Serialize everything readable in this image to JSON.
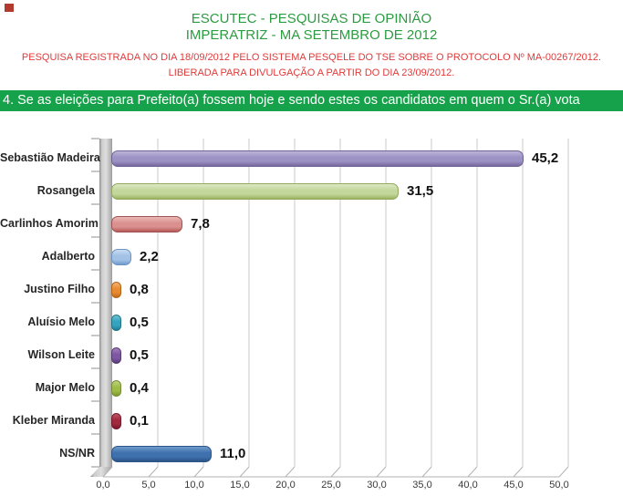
{
  "corner_mark": {
    "color": "#b2392e"
  },
  "header": {
    "title_line1": "ESCUTEC - PESQUISAS DE OPINIÃO",
    "title_line2": "IMPERATRIZ - MA SETEMBRO DE 2012",
    "title_color": "#2d9b41",
    "registration_line1": "PESQUISA REGISTRADA NO DIA 18/09/2012 PELO SISTEMA PESQELE DO TSE SOBRE O PROTOCOLO Nº MA-00267/2012.",
    "registration_line2": "LIBERADA PARA DIVULGAÇÃO A PARTIR DO DIA 23/09/2012.",
    "registration_color": "#e03a3a"
  },
  "question_banner": {
    "text": "4. Se as eleições para Prefeito(a) fossem hoje e sendo estes os candidatos em quem o Sr.(a) vota",
    "background": "#16a24b",
    "text_color": "#ffffff"
  },
  "chart_data": {
    "type": "bar",
    "orientation": "horizontal",
    "title": "",
    "xlabel": "",
    "ylabel": "",
    "categories": [
      "Sebastião Madeira",
      "Rosangela",
      "Carlinhos Amorim",
      "Adalberto",
      "Justino Filho",
      "Aluísio Melo",
      "Wilson Leite",
      "Major Melo",
      "Kleber Miranda",
      "NS/NR"
    ],
    "values": [
      45.2,
      31.5,
      7.8,
      2.2,
      0.8,
      0.5,
      0.5,
      0.4,
      0.1,
      11.0
    ],
    "value_labels": [
      "45,2",
      "31,5",
      "7,8",
      "2,2",
      "0,8",
      "0,5",
      "0,5",
      "0,4",
      "0,1",
      "11,0"
    ],
    "bar_colors": [
      {
        "light": "#beb5d9",
        "base": "#9c92c4",
        "dark": "#77689e",
        "border": "#6f6393"
      },
      {
        "light": "#dde9c3",
        "base": "#c3d69b",
        "dark": "#9bb35f",
        "border": "#8fa95e"
      },
      {
        "light": "#eab9b7",
        "base": "#d9908e",
        "dark": "#b55a58",
        "border": "#a05351"
      },
      {
        "light": "#c8dcf2",
        "base": "#a3c1e5",
        "dark": "#6f9cce",
        "border": "#6b94c4"
      },
      {
        "light": "#f5b470",
        "base": "#e78b33",
        "dark": "#c26a14",
        "border": "#b3641a"
      },
      {
        "light": "#6ec5d8",
        "base": "#35a3be",
        "dark": "#1d7d95",
        "border": "#20758b"
      },
      {
        "light": "#a183bd",
        "base": "#7d57a1",
        "dark": "#5a3a78",
        "border": "#553a74"
      },
      {
        "light": "#c0d47e",
        "base": "#9fba48",
        "dark": "#7d9630",
        "border": "#768e33"
      },
      {
        "light": "#c05568",
        "base": "#a0293d",
        "dark": "#7c1428",
        "border": "#771b2c"
      },
      {
        "light": "#6f9bcb",
        "base": "#3f71ae",
        "dark": "#2a5486",
        "border": "#2d5587"
      }
    ],
    "x_ticks": [
      "0,0",
      "5,0",
      "10,0",
      "15,0",
      "20,0",
      "25,0",
      "30,0",
      "35,0",
      "40,0",
      "45,0",
      "50,0"
    ],
    "xlim": [
      0,
      50
    ],
    "grid": true,
    "legend": "none",
    "style": "3d-horizontal-bars"
  }
}
